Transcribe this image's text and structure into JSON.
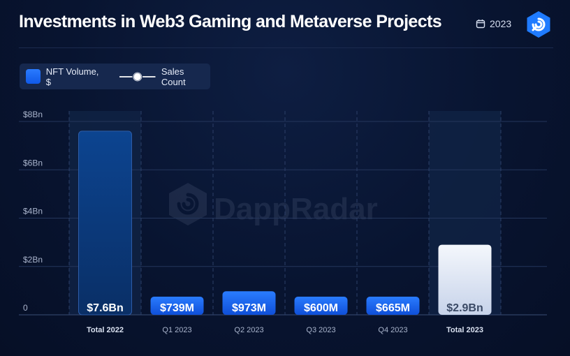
{
  "header": {
    "title": "Investments in Web3 Gaming and Metaverse Projects",
    "year": "2023",
    "calendar_icon": "calendar-icon",
    "logo_icon": "dappradar-logo-icon"
  },
  "watermark": "DappRadar",
  "legend": {
    "bar_label": "NFT Volume, $",
    "line_label": "Sales Count"
  },
  "colors": {
    "bar_blue": "#1a66f0",
    "bar_total_2022": "#0d3f86",
    "bar_total_2023": "#e8edf6",
    "highlight_column": "#0f2143",
    "grid": "#24365c"
  },
  "chart_data": {
    "type": "bar",
    "title": "Investments in Web3 Gaming and Metaverse Projects",
    "xlabel": "",
    "ylabel": "",
    "ylim": [
      0,
      8
    ],
    "unit": "Bn",
    "y_ticks": [
      {
        "value": 0,
        "label": "0"
      },
      {
        "value": 2,
        "label": "$2Bn"
      },
      {
        "value": 4,
        "label": "$4Bn"
      },
      {
        "value": 6,
        "label": "$6Bn"
      },
      {
        "value": 8,
        "label": "$8Bn"
      }
    ],
    "categories": [
      "Total 2022",
      "Q1 2023",
      "Q2 2023",
      "Q3 2023",
      "Q4 2023",
      "Total 2023"
    ],
    "values": [
      7.6,
      0.739,
      0.973,
      0.6,
      0.665,
      2.9
    ],
    "data_labels": [
      "$7.6Bn",
      "$739M",
      "$973M",
      "$600M",
      "$665M",
      "$2.9Bn"
    ],
    "highlighted": [
      true,
      false,
      false,
      false,
      false,
      true
    ],
    "grid": true
  }
}
